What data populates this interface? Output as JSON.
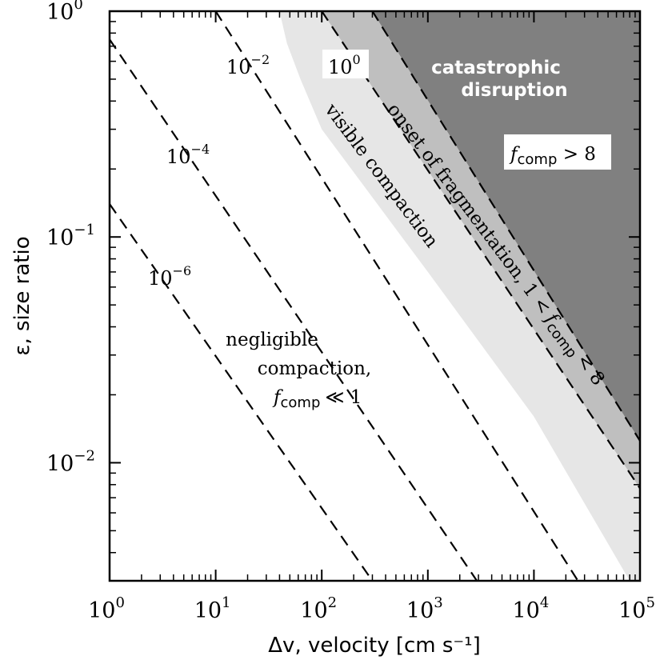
{
  "chart_data": {
    "type": "area",
    "x_scale": "log",
    "y_scale": "log",
    "xlim": [
      1,
      100000
    ],
    "ylim": [
      0.003,
      1
    ],
    "xlabel": "Δv, velocity [cm s⁻¹]",
    "ylabel": "ε, size ratio",
    "x_ticks": [
      {
        "value": 1,
        "base": "10",
        "exp": "0"
      },
      {
        "value": 10,
        "base": "10",
        "exp": "1"
      },
      {
        "value": 100,
        "base": "10",
        "exp": "2"
      },
      {
        "value": 1000,
        "base": "10",
        "exp": "3"
      },
      {
        "value": 10000,
        "base": "10",
        "exp": "4"
      },
      {
        "value": 100000,
        "base": "10",
        "exp": "5"
      }
    ],
    "y_ticks": [
      {
        "value": 1,
        "base": "10",
        "exp": "0"
      },
      {
        "value": 0.1,
        "base": "10",
        "exp": "−1"
      },
      {
        "value": 0.01,
        "base": "10",
        "exp": "−2"
      }
    ],
    "contours": [
      {
        "label_base": "10",
        "label_exp": "−6",
        "points": [
          [
            1,
            0.14
          ],
          [
            300,
            0.003
          ]
        ]
      },
      {
        "label_base": "10",
        "label_exp": "−4",
        "points": [
          [
            1,
            0.75
          ],
          [
            2900,
            0.003
          ]
        ]
      },
      {
        "label_base": "10",
        "label_exp": "−2",
        "points": [
          [
            10,
            1
          ],
          [
            26000,
            0.003
          ]
        ]
      },
      {
        "label_base": "10",
        "label_exp": "0",
        "points": [
          [
            100,
            1
          ],
          [
            100000,
            0.0077
          ]
        ]
      },
      {
        "label_base": "",
        "label_exp": "",
        "points": [
          [
            300,
            1
          ],
          [
            100000,
            0.0125
          ]
        ]
      }
    ],
    "regions": [
      {
        "name": "visible compaction",
        "shade": "#e6e6e6",
        "boundary": [
          [
            40,
            1
          ],
          [
            47,
            0.72
          ],
          [
            63,
            0.5
          ],
          [
            100,
            0.3
          ],
          [
            1000,
            0.07
          ],
          [
            10000,
            0.016
          ],
          [
            80000,
            0.003
          ]
        ]
      },
      {
        "name": "onset of fragmentation",
        "shade": "#bfbfbf",
        "boundary": [
          [
            100,
            1
          ],
          [
            100000,
            0.0077
          ]
        ]
      },
      {
        "name": "catastrophic disruption",
        "shade": "#808080",
        "boundary": [
          [
            300,
            1
          ],
          [
            100000,
            0.0125
          ]
        ]
      }
    ],
    "annotations": {
      "negligible": {
        "line1": "negligible",
        "line2": "compaction,",
        "f": "f",
        "sub": "comp",
        "rel": "≪ 1"
      },
      "visible": "visible compaction",
      "onset": {
        "text": "onset of fragmentation, 1 <",
        "f": "f",
        "sub": "comp",
        "rel": "< 8"
      },
      "catastrophic": {
        "line1": "catastrophic",
        "line2": "disruption"
      },
      "fcomp_gt": {
        "f": "f",
        "sub": "comp",
        "rel": " > 8"
      }
    },
    "grid": false
  }
}
